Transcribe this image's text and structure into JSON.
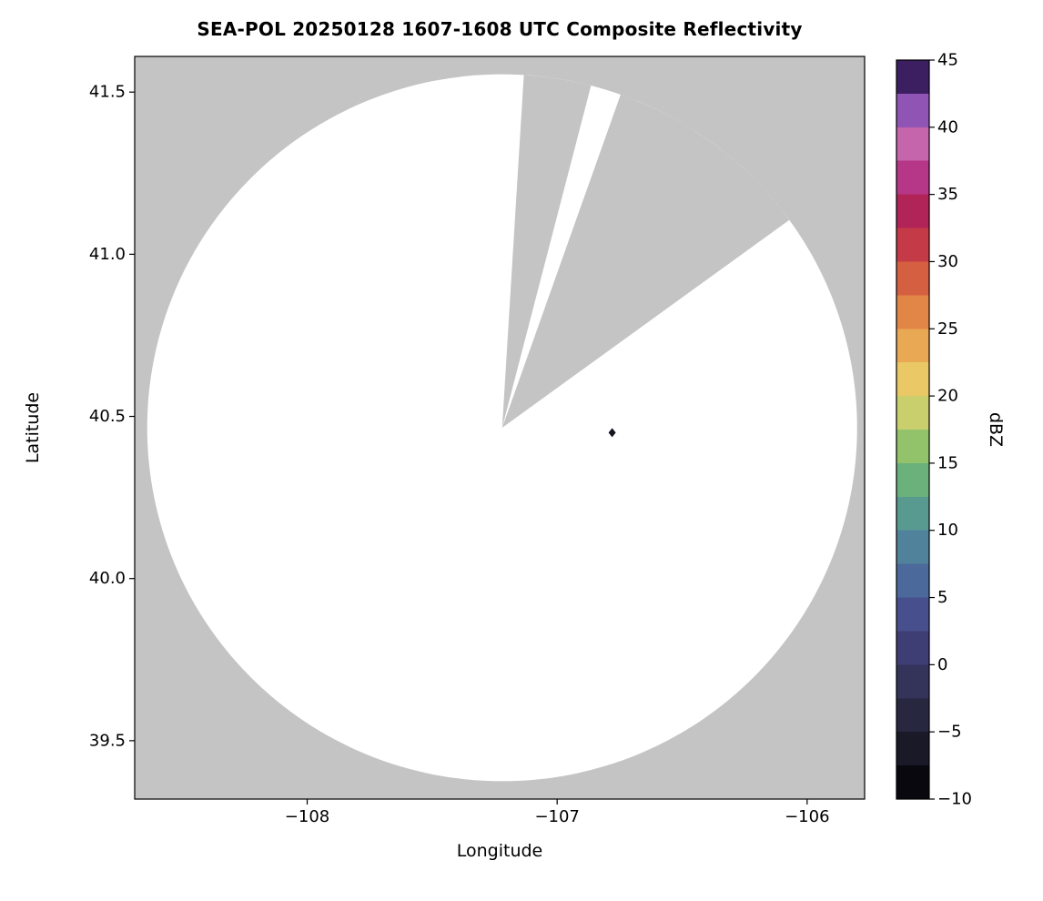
{
  "chart_data": {
    "type": "heatmap",
    "title": "SEA-POL 20250128 1607-1608 UTC Composite Reflectivity",
    "xlabel": "Longitude",
    "ylabel": "Latitude",
    "xlim": [
      -108.69,
      -105.77
    ],
    "ylim": [
      39.32,
      41.61
    ],
    "grid": false,
    "x_ticks": [
      {
        "value": -108,
        "label": "−108"
      },
      {
        "value": -107,
        "label": "−107"
      },
      {
        "value": -106,
        "label": "−106"
      }
    ],
    "y_ticks": [
      {
        "value": 39.5,
        "label": "39.5"
      },
      {
        "value": 40.0,
        "label": "40.0"
      },
      {
        "value": 40.5,
        "label": "40.5"
      },
      {
        "value": 41.0,
        "label": "41.0"
      },
      {
        "value": 41.5,
        "label": "41.5"
      }
    ],
    "colors": {
      "background": "#ffffff",
      "no_data_gray": "#c4c4c4",
      "coverage_white": "#ffffff",
      "frame": "#000000",
      "text": "#000000"
    },
    "radar": {
      "center_lon": -107.22,
      "center_lat": 40.465,
      "radius_deg_lon": 1.42,
      "radius_deg_lat": 1.09,
      "missing_sectors_azimuth_deg": [
        {
          "from": 3.5,
          "to": 14.5
        },
        {
          "from": 19.5,
          "to": 54.0
        }
      ]
    },
    "echoes": [
      {
        "lon": -106.78,
        "lat": 40.45,
        "color": "#15151f"
      }
    ],
    "colorbar": {
      "label": "dBZ",
      "vmin": -10,
      "vmax": 45,
      "ticks": [
        {
          "value": 45,
          "label": "45"
        },
        {
          "value": 40,
          "label": "40"
        },
        {
          "value": 35,
          "label": "35"
        },
        {
          "value": 30,
          "label": "30"
        },
        {
          "value": 25,
          "label": "25"
        },
        {
          "value": 20,
          "label": "20"
        },
        {
          "value": 15,
          "label": "15"
        },
        {
          "value": 10,
          "label": "10"
        },
        {
          "value": 5,
          "label": "5"
        },
        {
          "value": 0,
          "label": "0"
        },
        {
          "value": -5,
          "label": "−5"
        },
        {
          "value": -10,
          "label": "−10"
        }
      ],
      "segments": [
        {
          "v0": -10.0,
          "v1": -7.5,
          "color": "#08080e"
        },
        {
          "v0": -7.5,
          "v1": -5.0,
          "color": "#191927"
        },
        {
          "v0": -5.0,
          "v1": -2.5,
          "color": "#282740"
        },
        {
          "v0": -2.5,
          "v1": 0.0,
          "color": "#34335a"
        },
        {
          "v0": 0.0,
          "v1": 2.5,
          "color": "#3f3e74"
        },
        {
          "v0": 2.5,
          "v1": 5.0,
          "color": "#47508c"
        },
        {
          "v0": 5.0,
          "v1": 7.5,
          "color": "#4c699c"
        },
        {
          "v0": 7.5,
          "v1": 10.0,
          "color": "#51829c"
        },
        {
          "v0": 10.0,
          "v1": 12.5,
          "color": "#589a90"
        },
        {
          "v0": 12.5,
          "v1": 15.0,
          "color": "#6bb17b"
        },
        {
          "v0": 15.0,
          "v1": 17.5,
          "color": "#92c36b"
        },
        {
          "v0": 17.5,
          "v1": 20.0,
          "color": "#c9cf6d"
        },
        {
          "v0": 20.0,
          "v1": 22.5,
          "color": "#e9c865"
        },
        {
          "v0": 22.5,
          "v1": 25.0,
          "color": "#e9a854"
        },
        {
          "v0": 25.0,
          "v1": 27.5,
          "color": "#e28647"
        },
        {
          "v0": 27.5,
          "v1": 30.0,
          "color": "#d55f41"
        },
        {
          "v0": 30.0,
          "v1": 32.5,
          "color": "#c53a47"
        },
        {
          "v0": 32.5,
          "v1": 35.0,
          "color": "#b02458"
        },
        {
          "v0": 35.0,
          "v1": 37.5,
          "color": "#b63687"
        },
        {
          "v0": 37.5,
          "v1": 40.0,
          "color": "#c565ab"
        },
        {
          "v0": 40.0,
          "v1": 42.5,
          "color": "#8f54b4"
        },
        {
          "v0": 42.5,
          "v1": 45.0,
          "color": "#3c1f60"
        }
      ]
    }
  }
}
